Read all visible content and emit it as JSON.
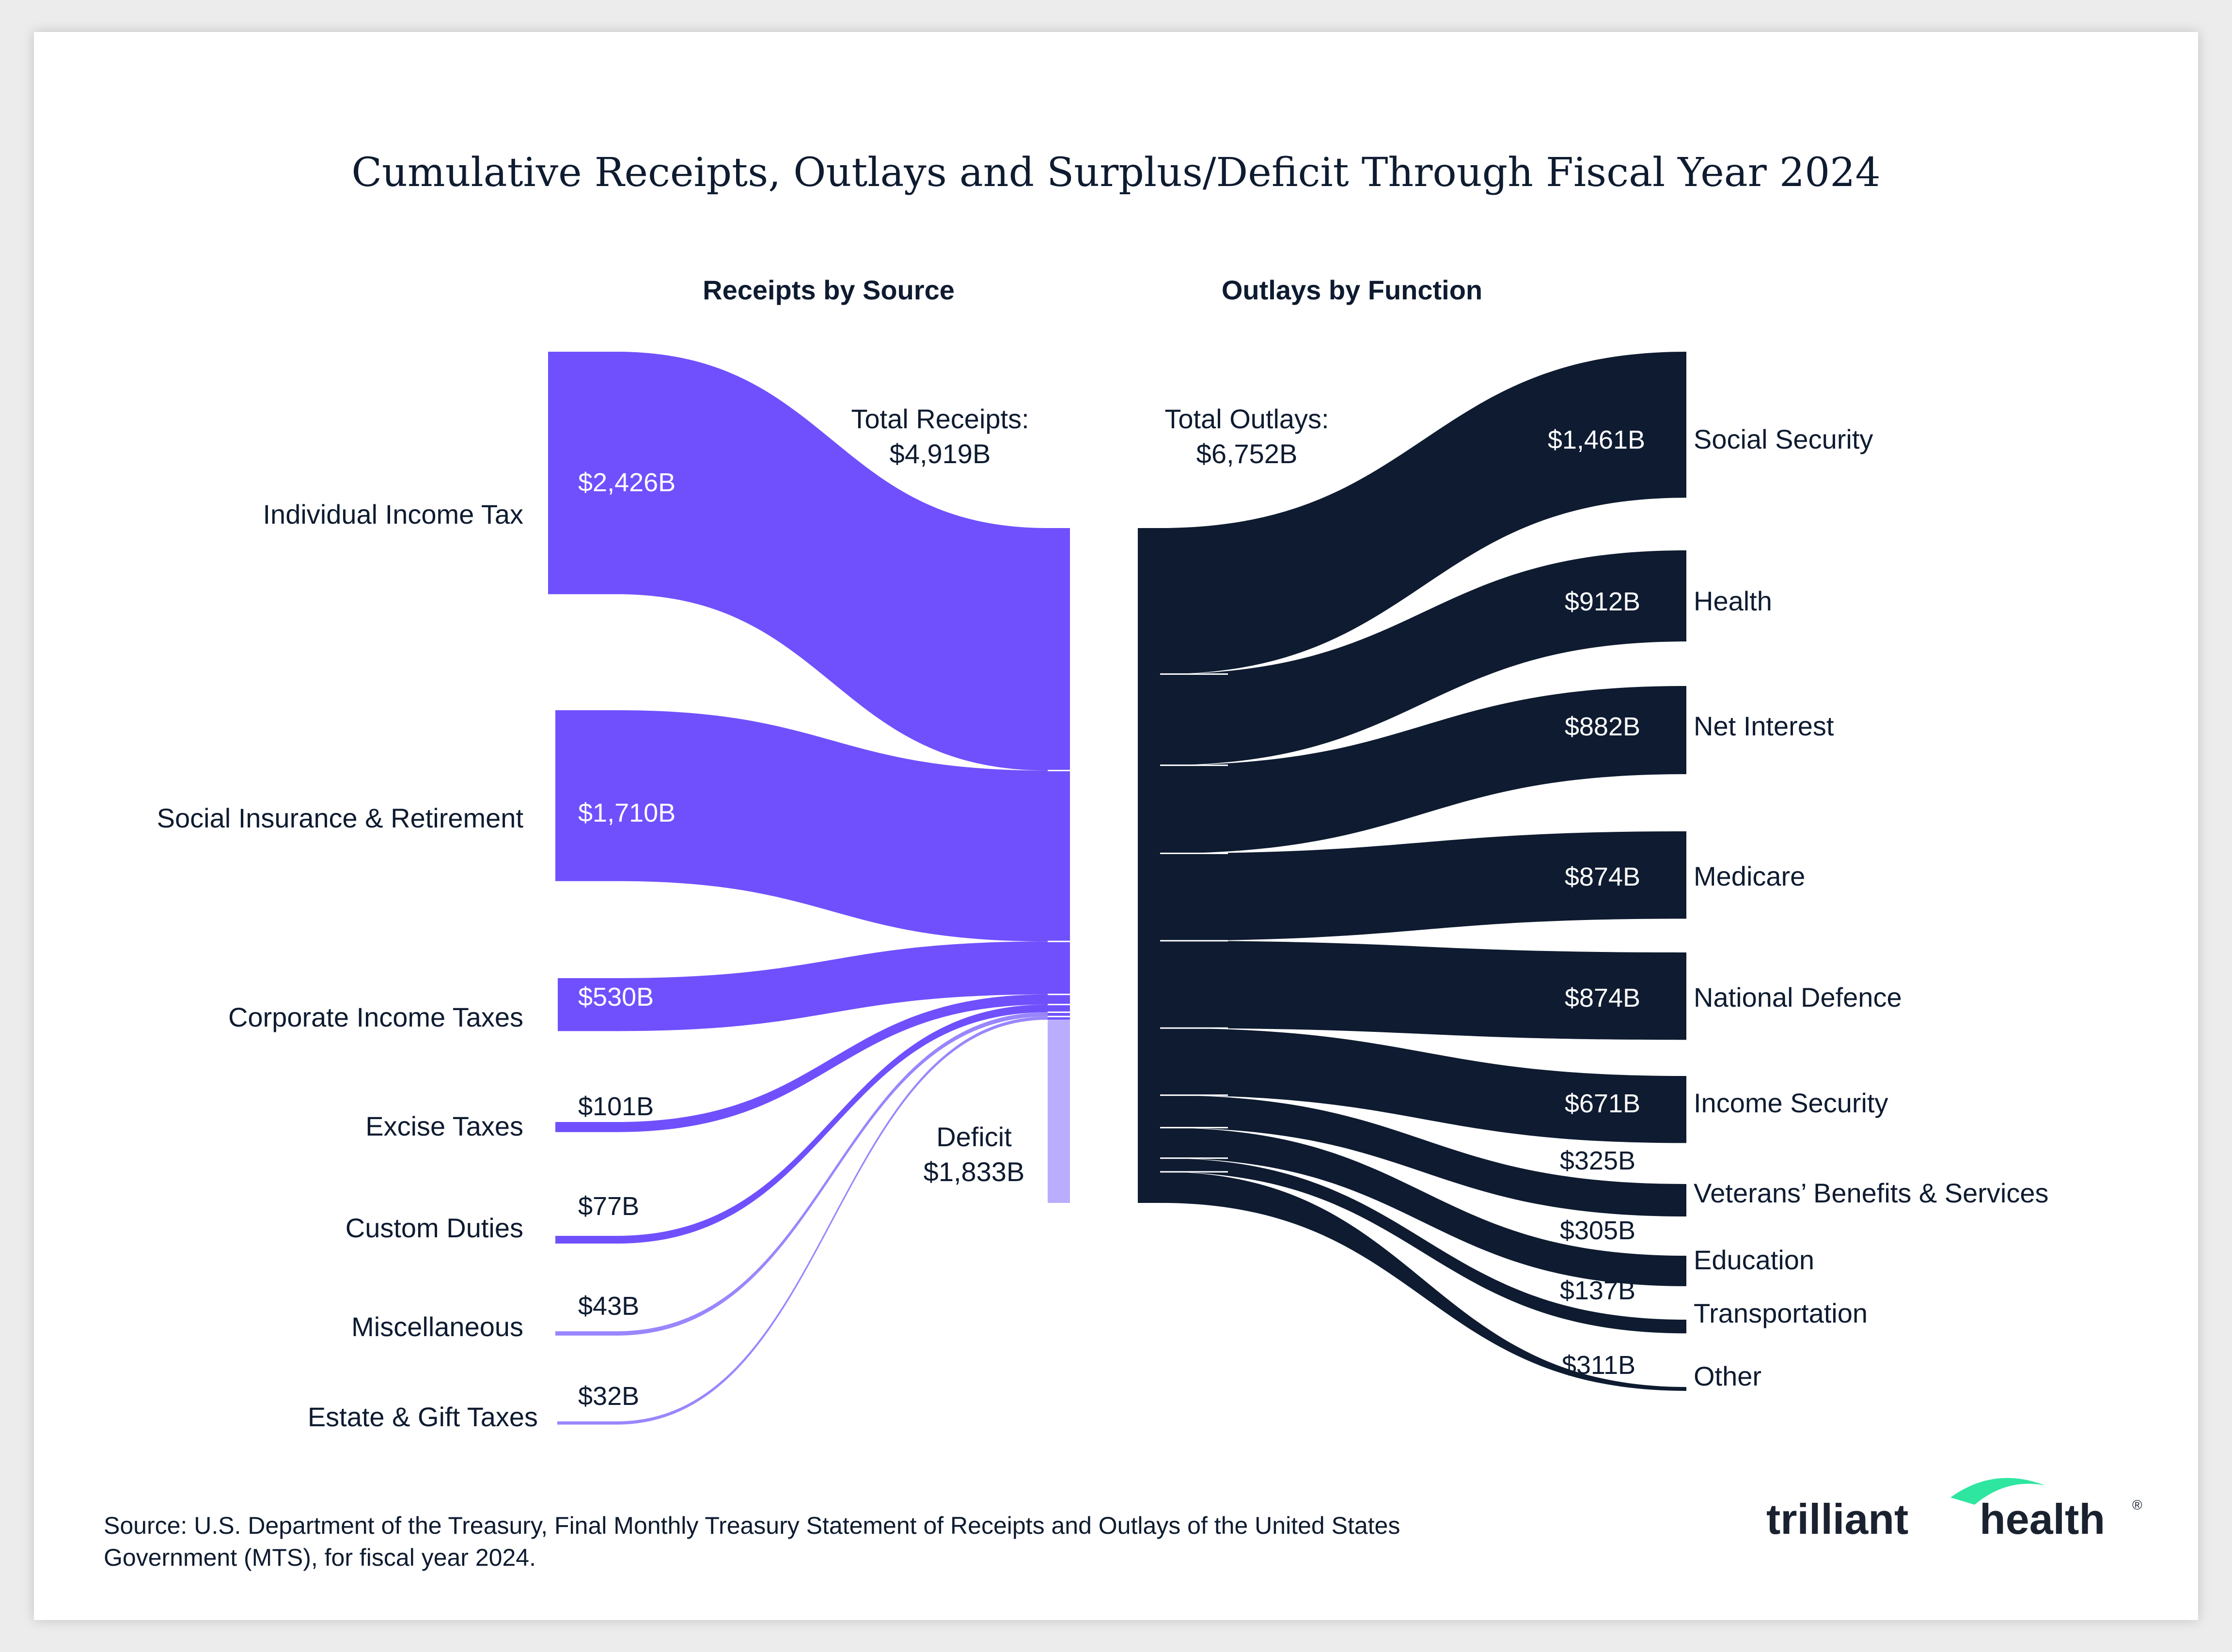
{
  "title": "Cumulative Receipts, Outlays and Surplus/Deficit Through Fiscal Year 2024",
  "receipts_heading": "Receipts by Source",
  "outlays_heading": "Outlays by Function",
  "total_receipts_label": "Total Receipts:",
  "total_receipts_value": "$4,919B",
  "total_outlays_label": "Total Outlays:",
  "total_outlays_value": "$6,752B",
  "deficit_label": "Deficit",
  "deficit_value": "$1,833B",
  "source_line1": "Source: U.S. Department of the Treasury, Final Monthly Treasury Statement of Receipts and Outlays of the United States",
  "source_line2": "Government (MTS), for fiscal year 2024.",
  "logo": {
    "part1": "trilliant",
    "part2": "health",
    "mark": "®"
  },
  "colors": {
    "receipts": "#7050fd",
    "receipts_light": "#9a86fc",
    "deficit": "#bbadfd",
    "outlays": "#0e1b30",
    "logo_accent": "#2ee6a0"
  },
  "chart_data": {
    "type": "sankey",
    "units": "$ billions",
    "receipts": [
      {
        "name": "Individual Income Tax",
        "value": 2426,
        "label": "$2,426B"
      },
      {
        "name": "Social Insurance & Retirement",
        "value": 1710,
        "label": "$1,710B"
      },
      {
        "name": "Corporate Income Taxes",
        "value": 530,
        "label": "$530B"
      },
      {
        "name": "Excise Taxes",
        "value": 101,
        "label": "$101B"
      },
      {
        "name": "Custom Duties",
        "value": 77,
        "label": "$77B"
      },
      {
        "name": "Miscellaneous",
        "value": 43,
        "label": "$43B"
      },
      {
        "name": "Estate & Gift Taxes",
        "value": 32,
        "label": "$32B"
      }
    ],
    "total_receipts": 4919,
    "deficit": 1833,
    "total_outlays": 6752,
    "outlays": [
      {
        "name": "Social Security",
        "value": 1461,
        "label": "$1,461B"
      },
      {
        "name": "Health",
        "value": 912,
        "label": "$912B"
      },
      {
        "name": "Net Interest",
        "value": 882,
        "label": "$882B"
      },
      {
        "name": "Medicare",
        "value": 874,
        "label": "$874B"
      },
      {
        "name": "National Defence",
        "value": 874,
        "label": "$874B"
      },
      {
        "name": "Income Security",
        "value": 671,
        "label": "$671B"
      },
      {
        "name": "Veterans’ Benefits & Services",
        "value": 325,
        "label": "$325B"
      },
      {
        "name": "Education",
        "value": 305,
        "label": "$305B"
      },
      {
        "name": "Transportation",
        "value": 137,
        "label": "$137B"
      },
      {
        "name": "Other",
        "value": 311,
        "label": "$311B"
      }
    ]
  }
}
